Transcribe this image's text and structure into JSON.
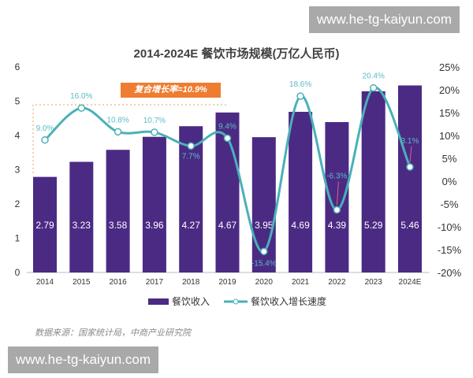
{
  "watermark": "www.he-tg-kaiyun.com",
  "source": "数据来源：国家统计局，中商产业研究院",
  "chart_data": {
    "type": "bar+line",
    "title": "2014-2024E 餐饮市场规模(万亿人民币)",
    "annotation": "复合增长率=10.9%",
    "categories": [
      "2014",
      "2015",
      "2016",
      "2017",
      "2018",
      "2019",
      "2020",
      "2021",
      "2022",
      "2023",
      "2024E"
    ],
    "series": [
      {
        "name": "餐饮收入",
        "type": "bar",
        "axis": "left",
        "color": "#4b2a84",
        "values": [
          2.79,
          3.23,
          3.58,
          3.96,
          4.27,
          4.67,
          3.95,
          4.69,
          4.39,
          5.29,
          5.46
        ],
        "labels": [
          "2.79",
          "3.23",
          "3.58",
          "3.96",
          "4.27",
          "4.67",
          "3.95",
          "4.69",
          "4.39",
          "5.29",
          "5.46"
        ]
      },
      {
        "name": "餐饮收入增长速度",
        "type": "line",
        "axis": "right",
        "color": "#4bb0b8",
        "values": [
          9.0,
          16.0,
          10.8,
          10.7,
          7.7,
          9.4,
          -15.4,
          18.6,
          -6.3,
          20.4,
          3.1
        ],
        "labels": [
          "9.0%",
          "16.0%",
          "10.8%",
          "10.7%",
          "7.7%",
          "9.4%",
          "-15.4%",
          "18.6%",
          "-6.3%",
          "20.4%",
          "3.1%"
        ]
      }
    ],
    "left_axis": {
      "range": [
        0,
        6
      ],
      "ticks": [
        "0",
        "1",
        "2",
        "3",
        "4",
        "5",
        "6"
      ]
    },
    "right_axis": {
      "range": [
        -20,
        25
      ],
      "ticks": [
        "-20%",
        "-15%",
        "-10%",
        "-5%",
        "0%",
        "5%",
        "10%",
        "15%",
        "20%",
        "25%"
      ]
    },
    "grid": false,
    "legend": "bottom"
  }
}
